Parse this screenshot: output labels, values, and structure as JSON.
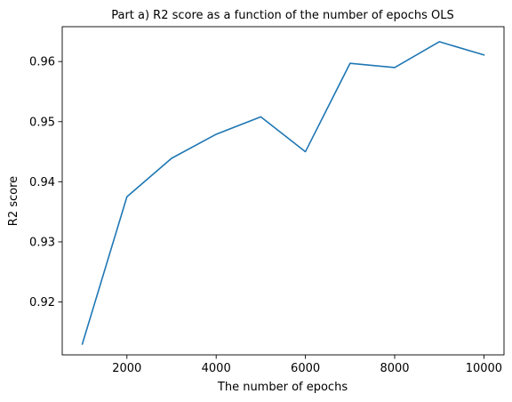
{
  "chart_data": {
    "type": "line",
    "title": "Part a) R2 score as a function of the number of epochs OLS",
    "xlabel": "The number of epochs",
    "ylabel": "R2 score",
    "xlim": [
      550,
      10450
    ],
    "ylim": [
      0.9112,
      0.9658
    ],
    "x_ticks": [
      2000,
      4000,
      6000,
      8000,
      10000
    ],
    "x_tick_labels": [
      "2000",
      "4000",
      "6000",
      "8000",
      "10000"
    ],
    "y_ticks": [
      0.92,
      0.93,
      0.94,
      0.95,
      0.96
    ],
    "y_tick_labels": [
      "0.92",
      "0.93",
      "0.94",
      "0.95",
      "0.96"
    ],
    "grid": false,
    "legend": "none",
    "series": [
      {
        "color": "#1f77b4",
        "x": [
          1000,
          2000,
          3000,
          4000,
          5000,
          6000,
          7000,
          8000,
          9000,
          10000
        ],
        "y": [
          0.913,
          0.9375,
          0.9439,
          0.9479,
          0.9508,
          0.945,
          0.9597,
          0.959,
          0.9633,
          0.9611
        ]
      }
    ]
  }
}
